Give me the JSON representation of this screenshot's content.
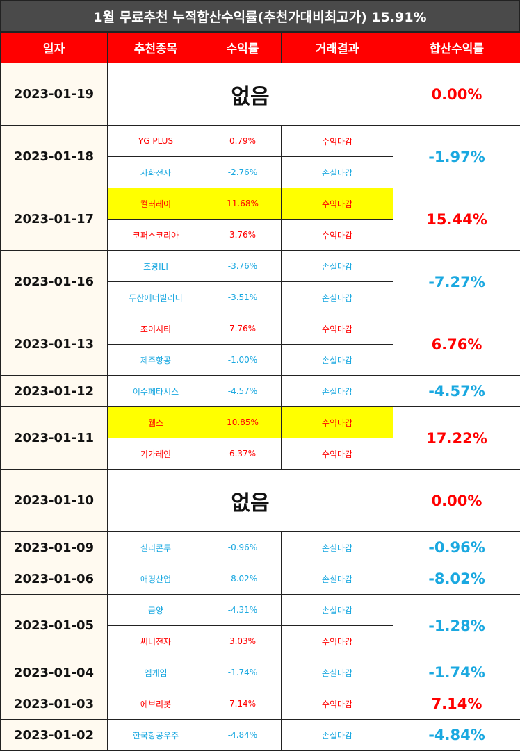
{
  "title": "1월 무료추천 누적합산수익률(추천가대비최고가) 15.91%",
  "headers": [
    "일자",
    "추천종목",
    "수익률",
    "거래결과",
    "합산수익률"
  ],
  "none_label": "없음",
  "colors": {
    "header_bg": "#ff0000",
    "title_bg": "#4a4a4a",
    "profit": "#ff0000",
    "loss": "#1aa8e0",
    "highlight": "#ffff00"
  },
  "days": [
    {
      "date": "2023-01-19",
      "total": "0.00%",
      "total_color": "red",
      "stocks": []
    },
    {
      "date": "2023-01-18",
      "total": "-1.97%",
      "total_color": "blue",
      "stocks": [
        {
          "name": "YG PLUS",
          "rate": "0.79%",
          "result": "수익마감",
          "color": "red",
          "highlight": false
        },
        {
          "name": "자화전자",
          "rate": "-2.76%",
          "result": "손실마감",
          "color": "blue",
          "highlight": false
        }
      ]
    },
    {
      "date": "2023-01-17",
      "total": "15.44%",
      "total_color": "red",
      "stocks": [
        {
          "name": "컬러레이",
          "rate": "11.68%",
          "result": "수익마감",
          "color": "red",
          "highlight": true
        },
        {
          "name": "코퍼스코리아",
          "rate": "3.76%",
          "result": "수익마감",
          "color": "red",
          "highlight": false
        }
      ]
    },
    {
      "date": "2023-01-16",
      "total": "-7.27%",
      "total_color": "blue",
      "stocks": [
        {
          "name": "조광ILI",
          "rate": "-3.76%",
          "result": "손실마감",
          "color": "blue",
          "highlight": false
        },
        {
          "name": "두산에너빌리티",
          "rate": "-3.51%",
          "result": "손실마감",
          "color": "blue",
          "highlight": false
        }
      ]
    },
    {
      "date": "2023-01-13",
      "total": "6.76%",
      "total_color": "red",
      "stocks": [
        {
          "name": "조이시티",
          "rate": "7.76%",
          "result": "수익마감",
          "color": "red",
          "highlight": false
        },
        {
          "name": "제주항공",
          "rate": "-1.00%",
          "result": "손실마감",
          "color": "blue",
          "highlight": false
        }
      ]
    },
    {
      "date": "2023-01-12",
      "total": "-4.57%",
      "total_color": "blue",
      "stocks": [
        {
          "name": "이수페타시스",
          "rate": "-4.57%",
          "result": "손실마감",
          "color": "blue",
          "highlight": false
        }
      ]
    },
    {
      "date": "2023-01-11",
      "total": "17.22%",
      "total_color": "red",
      "stocks": [
        {
          "name": "웹스",
          "rate": "10.85%",
          "result": "수익마감",
          "color": "red",
          "highlight": true
        },
        {
          "name": "기가레인",
          "rate": "6.37%",
          "result": "수익마감",
          "color": "red",
          "highlight": false
        }
      ]
    },
    {
      "date": "2023-01-10",
      "total": "0.00%",
      "total_color": "red",
      "stocks": []
    },
    {
      "date": "2023-01-09",
      "total": "-0.96%",
      "total_color": "blue",
      "stocks": [
        {
          "name": "실리콘투",
          "rate": "-0.96%",
          "result": "손실마감",
          "color": "blue",
          "highlight": false
        }
      ]
    },
    {
      "date": "2023-01-06",
      "total": "-8.02%",
      "total_color": "blue",
      "stocks": [
        {
          "name": "애경산업",
          "rate": "-8.02%",
          "result": "손실마감",
          "color": "blue",
          "highlight": false
        }
      ]
    },
    {
      "date": "2023-01-05",
      "total": "-1.28%",
      "total_color": "blue",
      "stocks": [
        {
          "name": "금양",
          "rate": "-4.31%",
          "result": "손실마감",
          "color": "blue",
          "highlight": false
        },
        {
          "name": "써니전자",
          "rate": "3.03%",
          "result": "수익마감",
          "color": "red",
          "highlight": false
        }
      ]
    },
    {
      "date": "2023-01-04",
      "total": "-1.74%",
      "total_color": "blue",
      "stocks": [
        {
          "name": "엠게임",
          "rate": "-1.74%",
          "result": "손실마감",
          "color": "blue",
          "highlight": false
        }
      ]
    },
    {
      "date": "2023-01-03",
      "total": "7.14%",
      "total_color": "red",
      "stocks": [
        {
          "name": "에브리봇",
          "rate": "7.14%",
          "result": "수익마감",
          "color": "red",
          "highlight": false
        }
      ]
    },
    {
      "date": "2023-01-02",
      "total": "-4.84%",
      "total_color": "blue",
      "stocks": [
        {
          "name": "한국항공우주",
          "rate": "-4.84%",
          "result": "손실마감",
          "color": "blue",
          "highlight": false
        }
      ]
    }
  ]
}
